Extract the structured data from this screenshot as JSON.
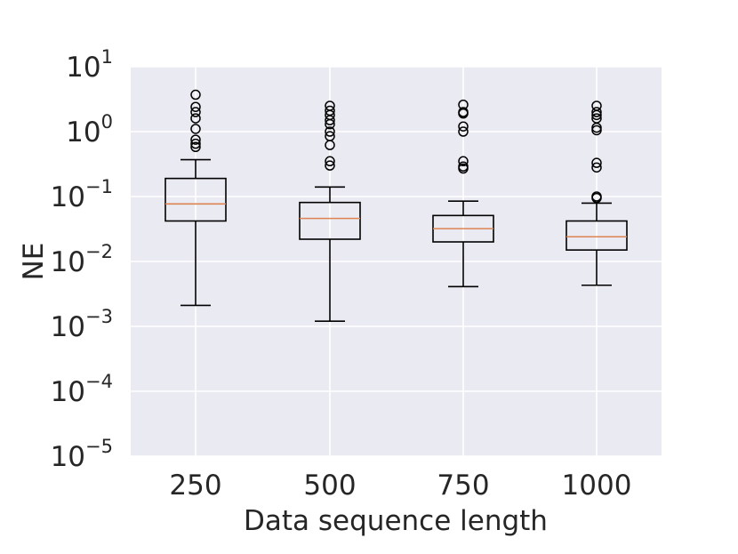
{
  "chart_data": {
    "type": "box",
    "title": "",
    "xlabel": "Data sequence length",
    "ylabel": "NE",
    "yscale": "log",
    "ylim": [
      1e-05,
      10
    ],
    "grid": true,
    "y_ticks": [
      {
        "base": "10",
        "exp": "1"
      },
      {
        "base": "10",
        "exp": "0"
      },
      {
        "base": "10",
        "exp": "−1"
      },
      {
        "base": "10",
        "exp": "−2"
      },
      {
        "base": "10",
        "exp": "−3"
      },
      {
        "base": "10",
        "exp": "−4"
      },
      {
        "base": "10",
        "exp": "−5"
      }
    ],
    "categories": [
      "250",
      "500",
      "750",
      "1000"
    ],
    "boxes": [
      {
        "label": "250",
        "whisker_low": 0.0021,
        "q1": 0.042,
        "median": 0.077,
        "q3": 0.19,
        "whisker_high": 0.37,
        "outliers": [
          3.7,
          2.4,
          2.0,
          1.6,
          1.1,
          0.75,
          0.65,
          0.58
        ]
      },
      {
        "label": "500",
        "whisker_low": 0.0012,
        "q1": 0.022,
        "median": 0.046,
        "q3": 0.081,
        "whisker_high": 0.14,
        "outliers": [
          2.5,
          2.1,
          1.8,
          1.5,
          1.3,
          1.0,
          0.85,
          0.62,
          0.35,
          0.3
        ]
      },
      {
        "label": "750",
        "whisker_low": 0.0041,
        "q1": 0.02,
        "median": 0.032,
        "q3": 0.051,
        "whisker_high": 0.085,
        "outliers": [
          2.6,
          2.0,
          1.9,
          1.2,
          1.0,
          0.35,
          0.29,
          0.27
        ]
      },
      {
        "label": "1000",
        "whisker_low": 0.0043,
        "q1": 0.015,
        "median": 0.024,
        "q3": 0.042,
        "whisker_high": 0.079,
        "outliers": [
          2.5,
          2.0,
          1.8,
          1.6,
          1.15,
          1.05,
          0.33,
          0.28,
          0.1,
          0.095
        ]
      }
    ]
  },
  "colors": {
    "plot_background": "#eaeaf2",
    "grid": "#ffffff",
    "box_edge": "#000000",
    "median": "#dd8452",
    "outlier_edge": "#000000",
    "text": "#262626"
  }
}
